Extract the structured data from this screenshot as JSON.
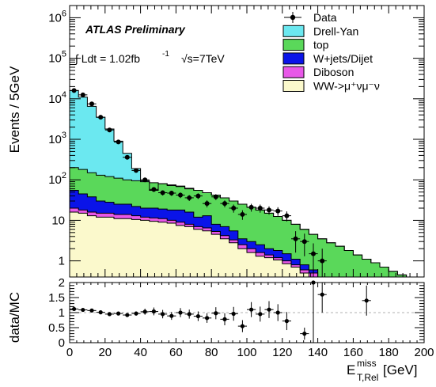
{
  "chart_data": [
    {
      "type": "bar",
      "subtype": "stacked-step-histogram-with-data-points",
      "ylabel": "Events / 5GeV",
      "xlabel": "E_T,Rel^miss [GeV]",
      "xlim": [
        0,
        200
      ],
      "ylim": [
        0.4,
        2000000
      ],
      "yscale": "log",
      "bin_width": 5,
      "annotations": {
        "experiment": "ATLAS Preliminary",
        "lumi": "∫ Ldt = 1.02fb",
        "lumi_exp": "-1",
        "energy": "√s=7TeV"
      },
      "legend": [
        {
          "name": "Data",
          "color": "#000000",
          "kind": "marker"
        },
        {
          "name": "Drell-Yan",
          "color": "#6BE8F0",
          "kind": "box"
        },
        {
          "name": "top",
          "color": "#5AD85A",
          "kind": "box"
        },
        {
          "name": "W+jets/Dijet",
          "color": "#0A14E8",
          "kind": "box"
        },
        {
          "name": "Diboson",
          "color": "#E858E8",
          "kind": "box"
        },
        {
          "name": "WW->μ⁺νμ⁻ν",
          "color": "#FBF9CC",
          "kind": "box"
        }
      ],
      "x_edges": [
        0,
        5,
        10,
        15,
        20,
        25,
        30,
        35,
        40,
        45,
        50,
        55,
        60,
        65,
        70,
        75,
        80,
        85,
        90,
        95,
        100,
        105,
        110,
        115,
        120,
        125,
        130,
        135,
        140,
        145,
        150,
        155,
        160,
        165,
        170,
        175,
        180,
        185,
        190,
        195,
        200
      ],
      "stack_order": [
        "WW->μ⁺νμ⁻ν",
        "Diboson",
        "W+jets/Dijet",
        "top",
        "Drell-Yan"
      ],
      "cumulative": {
        "WW->μ⁺νμ⁻ν": [
          16,
          15,
          13,
          12,
          12,
          11,
          11,
          10.5,
          10,
          9.5,
          9,
          8.5,
          7.5,
          7,
          6,
          5.5,
          4.5,
          3.5,
          2.8,
          2,
          1.6,
          1.3,
          1.2,
          1.05,
          0.85,
          0.7,
          0.5,
          0.4,
          0,
          0,
          0,
          0,
          0,
          0,
          0,
          0,
          0,
          0,
          0,
          0
        ],
        "Diboson": [
          20,
          18,
          16,
          15,
          15,
          14,
          14,
          13,
          12,
          11.5,
          11,
          10,
          9,
          8,
          7,
          6.5,
          5.3,
          4.2,
          3.3,
          2.5,
          2,
          1.6,
          1.4,
          1.2,
          1,
          0.8,
          0.6,
          0.5,
          0,
          0,
          0,
          0,
          0,
          0,
          0,
          0,
          0,
          0,
          0,
          0
        ],
        "W+jets/Dijet": [
          55,
          45,
          38,
          30,
          28,
          25,
          25,
          22,
          20,
          20,
          19,
          18,
          18,
          16,
          12,
          13,
          8,
          7,
          5.5,
          3.5,
          3,
          2.5,
          2,
          1.8,
          1.5,
          1.1,
          0.8,
          0.6,
          0,
          0,
          0,
          0,
          0,
          0,
          0,
          0,
          0,
          0,
          0,
          0
        ],
        "top": [
          200,
          180,
          150,
          130,
          120,
          110,
          100,
          95,
          90,
          85,
          80,
          75,
          70,
          62,
          55,
          48,
          42,
          36,
          30,
          25,
          21,
          18,
          15,
          12.5,
          10,
          8,
          6,
          4.5,
          3.5,
          2.8,
          2.3,
          1.8,
          1.4,
          1.1,
          0.9,
          0.7,
          0.55,
          0.45,
          0,
          0
        ],
        "Drell-Yan": [
          16000,
          11000,
          6500,
          3500,
          1800,
          900,
          450,
          190,
          95,
          55,
          80,
          72,
          68,
          60,
          55,
          48,
          42,
          36,
          30,
          25,
          21,
          18,
          15,
          12.5,
          10,
          8,
          6,
          4.5,
          3.5,
          2.8,
          2.3,
          1.8,
          1.4,
          1.1,
          0.9,
          0.7,
          0.55,
          0.45,
          0,
          0
        ]
      },
      "data_points": {
        "x": [
          2.5,
          7.5,
          12.5,
          17.5,
          22.5,
          27.5,
          32.5,
          37.5,
          42.5,
          47.5,
          52.5,
          57.5,
          62.5,
          67.5,
          72.5,
          77.5,
          82.5,
          87.5,
          92.5,
          97.5,
          102.5,
          107.5,
          112.5,
          117.5,
          122.5,
          127.5,
          132.5,
          137.5,
          142.5
        ],
        "y": [
          16000,
          12500,
          7500,
          3500,
          1700,
          860,
          360,
          170,
          100,
          58,
          48,
          47,
          42,
          36,
          40,
          26,
          38,
          26,
          20,
          14,
          21,
          20,
          18,
          17,
          13,
          3.5,
          3.0,
          1.5,
          1.0
        ],
        "yerr": [
          126,
          112,
          87,
          59,
          41,
          29,
          19,
          13,
          10,
          7.6,
          6.9,
          6.9,
          6.5,
          6,
          6.3,
          5.1,
          6.2,
          5.1,
          4.5,
          3.7,
          4.6,
          4.5,
          4.2,
          4.1,
          3.6,
          1.9,
          1.7,
          1.2,
          1.0
        ]
      },
      "y_tick_labels": [
        "1",
        "10",
        "10²",
        "10³",
        "10⁴",
        "10⁵",
        "10⁶"
      ]
    },
    {
      "type": "scatter",
      "ylabel": "data/MC",
      "xlabel": "E_T,Rel^miss [GeV]",
      "xlim": [
        0,
        200
      ],
      "ylim": [
        0,
        2
      ],
      "x_ticks": [
        0,
        20,
        40,
        60,
        80,
        100,
        120,
        140,
        160,
        180,
        200
      ],
      "y_ticks": [
        0,
        0.5,
        1,
        1.5,
        2
      ],
      "points": {
        "x": [
          2.5,
          7.5,
          12.5,
          17.5,
          22.5,
          27.5,
          32.5,
          37.5,
          42.5,
          47.5,
          52.5,
          57.5,
          62.5,
          67.5,
          72.5,
          77.5,
          82.5,
          87.5,
          92.5,
          97.5,
          102.5,
          107.5,
          112.5,
          117.5,
          122.5,
          132.5,
          137.5,
          142.5,
          167.5
        ],
        "y": [
          1.12,
          1.09,
          1.07,
          1.01,
          0.95,
          0.97,
          0.92,
          0.97,
          1.03,
          1.04,
          0.95,
          0.89,
          1.0,
          0.95,
          0.88,
          0.82,
          0.98,
          0.78,
          0.96,
          0.55,
          1.1,
          0.95,
          1.1,
          1.0,
          0.72,
          0.3,
          2.0,
          1.6,
          1.4
        ],
        "yerr": [
          0.01,
          0.01,
          0.01,
          0.02,
          0.02,
          0.03,
          0.04,
          0.07,
          0.1,
          0.13,
          0.14,
          0.13,
          0.15,
          0.15,
          0.16,
          0.16,
          0.2,
          0.2,
          0.23,
          0.2,
          0.25,
          0.25,
          0.28,
          0.28,
          0.3,
          0.2,
          0.7,
          0.6,
          0.5
        ]
      }
    }
  ]
}
